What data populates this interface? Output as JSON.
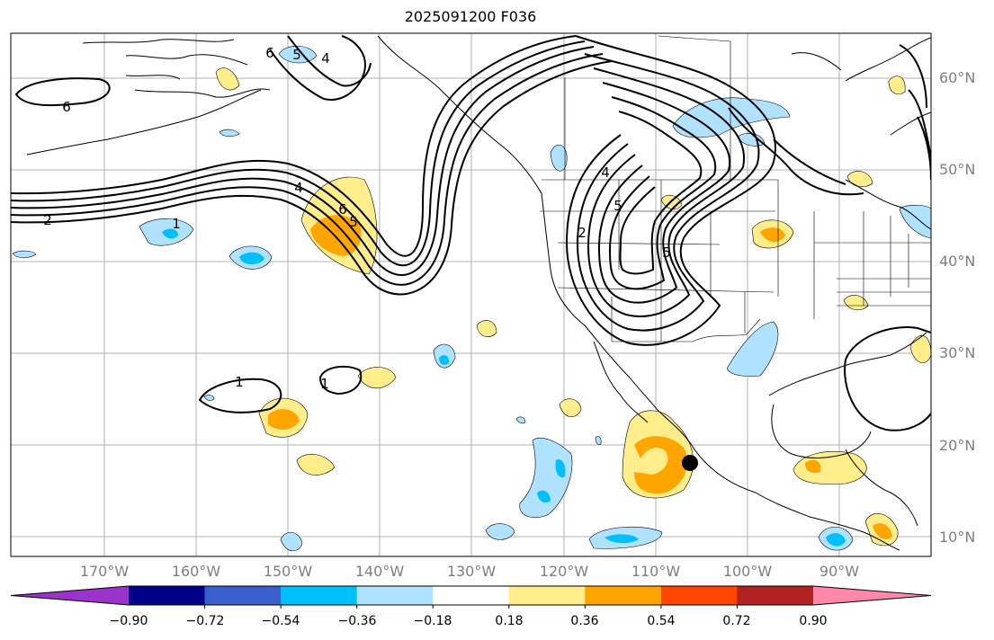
{
  "title": "2025091200 F036",
  "lat_labels": [
    "60°N",
    "50°N",
    "40°N",
    "30°N",
    "20°N",
    "10°N"
  ],
  "lon_labels": [
    "170°W",
    "160°W",
    "150°W",
    "140°W",
    "130°W",
    "120°W",
    "110°W",
    "100°W",
    "90°W"
  ],
  "contour_labels": [
    "6",
    "6",
    "5",
    "4",
    "2",
    "1",
    "4",
    "6",
    "5",
    "1",
    "1",
    "4",
    "2",
    "5",
    "5"
  ],
  "colorbar": {
    "ticks": [
      "−0.90",
      "−0.72",
      "−0.54",
      "−0.36",
      "−0.18",
      "0.18",
      "0.36",
      "0.54",
      "0.72",
      "0.90"
    ],
    "colors": [
      "#9933cc",
      "#00008b",
      "#3a5fcd",
      "#00bfff",
      "#b0e2ff",
      "#ffffff",
      "#ffec8b",
      "#ffa500",
      "#ff4500",
      "#b22222",
      "#ff88aa"
    ]
  },
  "marker_label": ""
}
